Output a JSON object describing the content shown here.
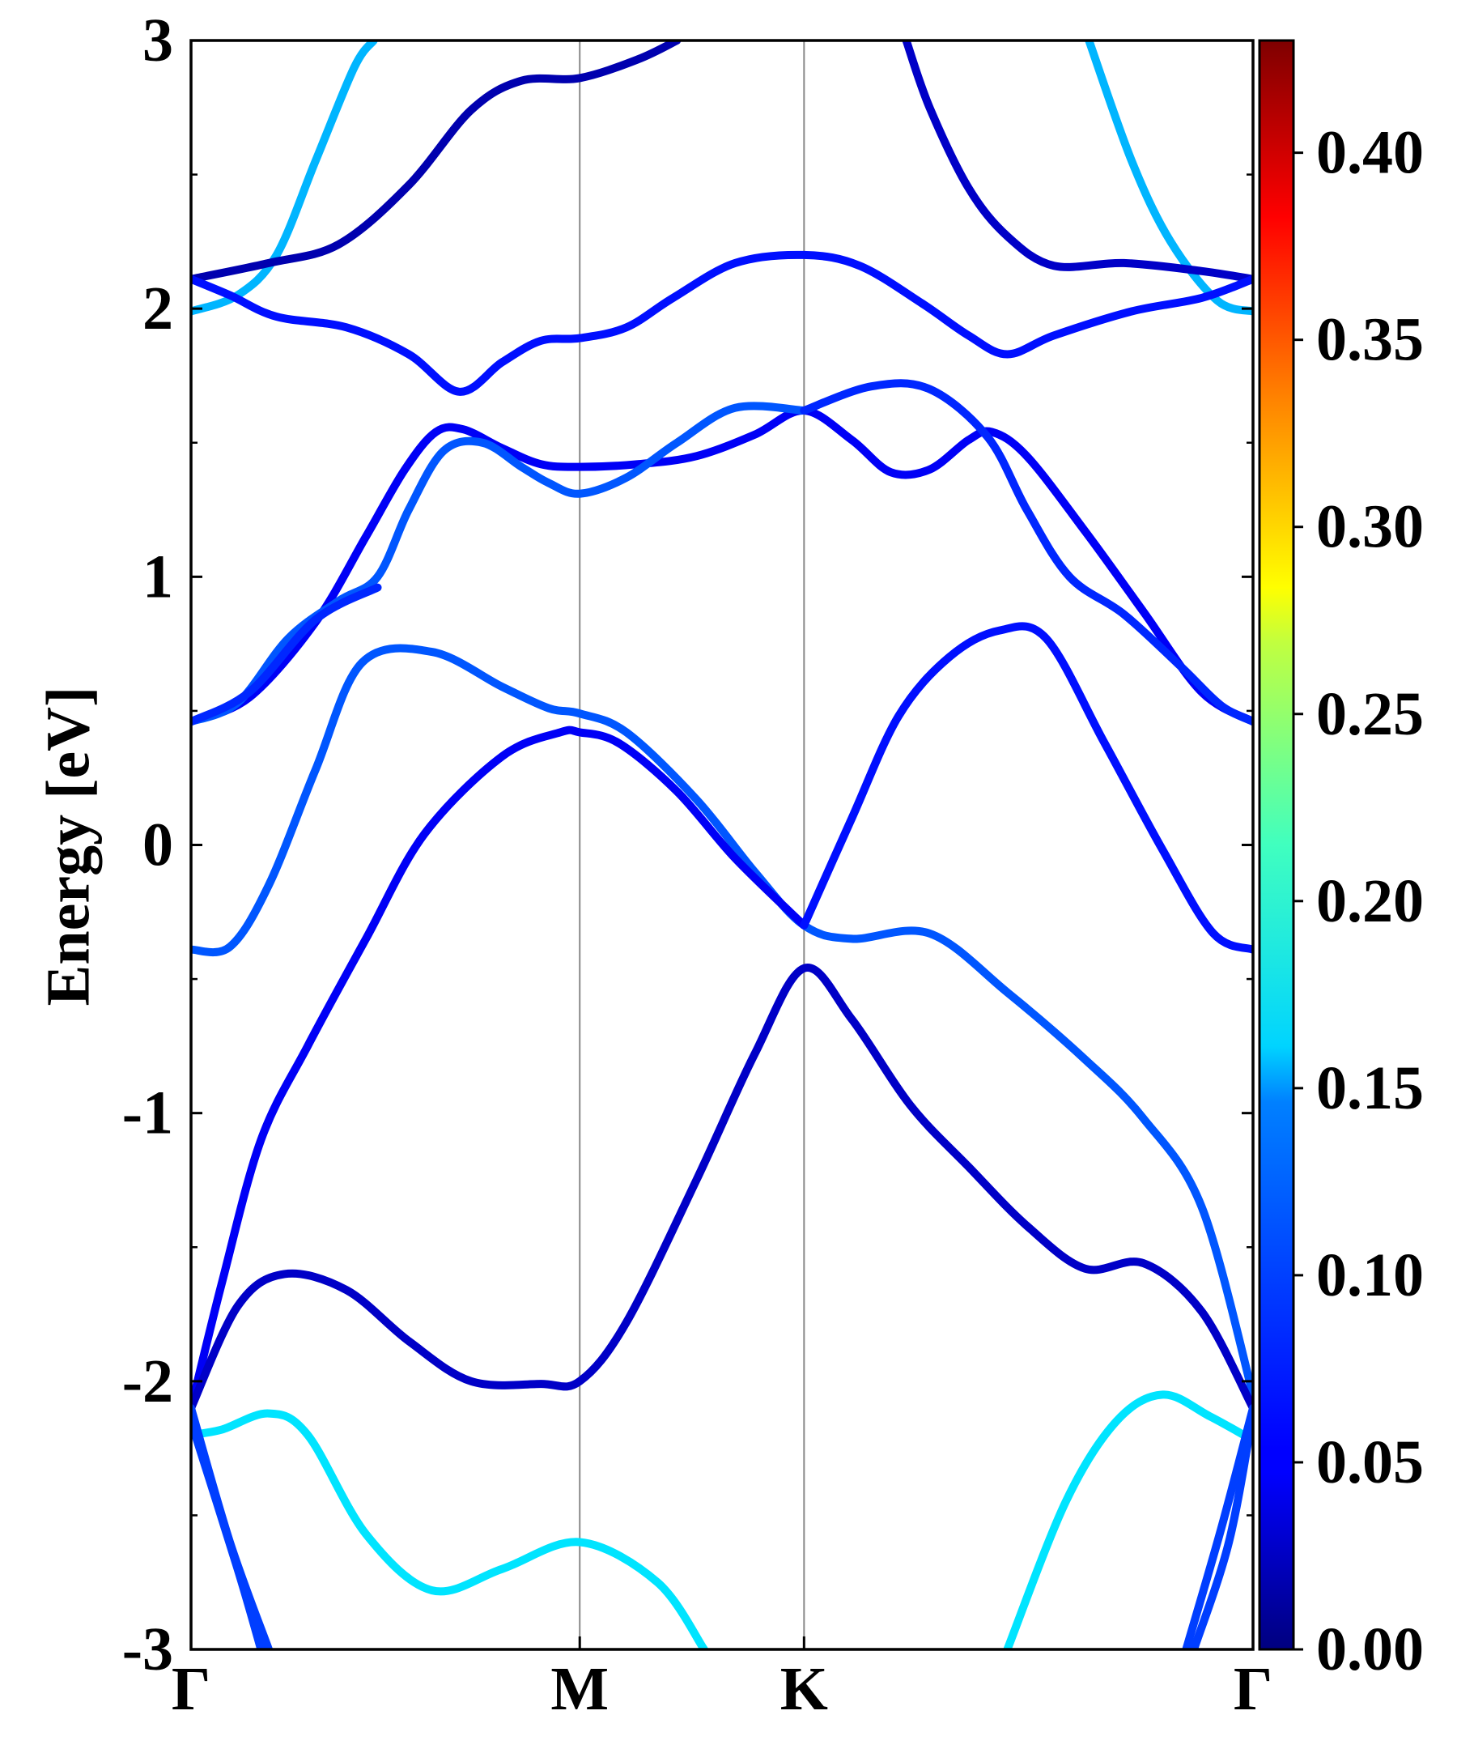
{
  "chart_data": {
    "type": "line",
    "title": "",
    "xlabel": "",
    "ylabel": "Energy [eV]",
    "ylim": [
      -3,
      3
    ],
    "yticks": [
      -3,
      -2,
      -1,
      0,
      1,
      2,
      3
    ],
    "ytick_labels": [
      "-3",
      "-2",
      "-1",
      "0",
      "1",
      "2",
      "3"
    ],
    "kpath": [
      {
        "label": "Γ",
        "x": 0.0
      },
      {
        "label": "M",
        "x": 1.0
      },
      {
        "label": "K",
        "x": 1.577
      },
      {
        "label": "Γ",
        "x": 2.732
      }
    ],
    "grid": false,
    "colormap": "jet",
    "colorbar": {
      "min": 0.0,
      "max": 0.43,
      "ticks": [
        0.0,
        0.05,
        0.1,
        0.15,
        0.2,
        0.25,
        0.3,
        0.35,
        0.4
      ],
      "tick_labels": [
        "0.00",
        "0.05",
        "0.10",
        "0.15",
        "0.20",
        "0.25",
        "0.30",
        "0.35",
        "0.40"
      ]
    },
    "bands": [
      {
        "weight": 0.13,
        "points": [
          [
            0.0,
            1.99
          ],
          [
            0.12,
            2.05
          ],
          [
            0.22,
            2.2
          ],
          [
            0.32,
            2.55
          ],
          [
            0.42,
            2.9
          ],
          [
            0.47,
            3.0
          ]
        ]
      },
      {
        "weight": 0.13,
        "points": [
          [
            2.31,
            3.0
          ],
          [
            2.42,
            2.55
          ],
          [
            2.52,
            2.25
          ],
          [
            2.64,
            2.03
          ],
          [
            2.732,
            1.99
          ]
        ]
      },
      {
        "weight": 0.02,
        "points": [
          [
            0.0,
            2.11
          ],
          [
            0.2,
            2.17
          ],
          [
            0.38,
            2.24
          ],
          [
            0.56,
            2.46
          ],
          [
            0.72,
            2.74
          ],
          [
            0.85,
            2.85
          ],
          [
            1.0,
            2.86
          ],
          [
            1.15,
            2.93
          ],
          [
            1.25,
            3.0
          ]
        ]
      },
      {
        "weight": 0.03,
        "points": [
          [
            1.84,
            3.0
          ],
          [
            1.9,
            2.75
          ],
          [
            2.0,
            2.45
          ],
          [
            2.1,
            2.27
          ],
          [
            2.22,
            2.16
          ],
          [
            2.4,
            2.17
          ],
          [
            2.6,
            2.14
          ],
          [
            2.732,
            2.11
          ]
        ]
      },
      {
        "weight": 0.06,
        "points": [
          [
            0.0,
            2.11
          ],
          [
            0.1,
            2.05
          ],
          [
            0.22,
            1.97
          ],
          [
            0.4,
            1.93
          ],
          [
            0.56,
            1.83
          ],
          [
            0.69,
            1.69
          ],
          [
            0.8,
            1.8
          ],
          [
            0.9,
            1.88
          ],
          [
            1.0,
            1.89
          ],
          [
            1.12,
            1.93
          ],
          [
            1.24,
            2.04
          ],
          [
            1.4,
            2.17
          ],
          [
            1.577,
            2.2
          ],
          [
            1.72,
            2.16
          ],
          [
            1.88,
            2.02
          ],
          [
            2.0,
            1.9
          ],
          [
            2.1,
            1.83
          ],
          [
            2.22,
            1.9
          ],
          [
            2.42,
            1.99
          ],
          [
            2.6,
            2.04
          ],
          [
            2.732,
            2.11
          ]
        ]
      },
      {
        "weight": 0.05,
        "points": [
          [
            0.0,
            0.46
          ],
          [
            0.15,
            0.55
          ],
          [
            0.32,
            0.83
          ],
          [
            0.45,
            1.15
          ],
          [
            0.55,
            1.4
          ],
          [
            0.63,
            1.54
          ],
          [
            0.7,
            1.55
          ],
          [
            0.8,
            1.48
          ],
          [
            0.9,
            1.42
          ],
          [
            1.0,
            1.41
          ],
          [
            1.15,
            1.42
          ],
          [
            1.3,
            1.45
          ],
          [
            1.45,
            1.53
          ],
          [
            1.577,
            1.62
          ],
          [
            1.7,
            1.51
          ],
          [
            1.8,
            1.39
          ],
          [
            1.9,
            1.4
          ],
          [
            2.0,
            1.51
          ],
          [
            2.06,
            1.54
          ],
          [
            2.15,
            1.45
          ],
          [
            2.3,
            1.17
          ],
          [
            2.45,
            0.87
          ],
          [
            2.6,
            0.57
          ],
          [
            2.732,
            0.46
          ]
        ]
      },
      {
        "weight": 0.09,
        "points": [
          [
            0.0,
            0.46
          ],
          [
            0.12,
            0.53
          ],
          [
            0.25,
            0.77
          ],
          [
            0.38,
            0.91
          ],
          [
            0.48,
            1.0
          ],
          [
            0.56,
            1.25
          ],
          [
            0.65,
            1.47
          ],
          [
            0.75,
            1.5
          ],
          [
            0.85,
            1.41
          ],
          [
            0.92,
            1.35
          ],
          [
            1.0,
            1.31
          ],
          [
            1.12,
            1.37
          ],
          [
            1.25,
            1.5
          ],
          [
            1.4,
            1.63
          ],
          [
            1.577,
            1.62
          ]
        ]
      },
      {
        "weight": 0.07,
        "points": [
          [
            0.0,
            0.46
          ],
          [
            0.15,
            0.57
          ],
          [
            0.32,
            0.84
          ],
          [
            0.48,
            0.96
          ]
        ]
      },
      {
        "weight": 0.07,
        "points": [
          [
            1.577,
            1.62
          ],
          [
            1.75,
            1.71
          ],
          [
            1.9,
            1.7
          ],
          [
            2.05,
            1.52
          ],
          [
            2.15,
            1.25
          ],
          [
            2.26,
            1.0
          ],
          [
            2.4,
            0.86
          ],
          [
            2.55,
            0.66
          ],
          [
            2.65,
            0.52
          ],
          [
            2.732,
            0.46
          ]
        ]
      },
      {
        "weight": 0.09,
        "points": [
          [
            0.0,
            -0.39
          ],
          [
            0.1,
            -0.38
          ],
          [
            0.2,
            -0.15
          ],
          [
            0.32,
            0.28
          ],
          [
            0.44,
            0.68
          ],
          [
            0.62,
            0.72
          ],
          [
            0.8,
            0.59
          ],
          [
            0.92,
            0.51
          ],
          [
            1.0,
            0.49
          ],
          [
            1.12,
            0.42
          ],
          [
            1.3,
            0.17
          ],
          [
            1.45,
            -0.1
          ],
          [
            1.577,
            -0.3
          ],
          [
            1.7,
            -0.35
          ],
          [
            1.9,
            -0.33
          ],
          [
            2.1,
            -0.55
          ],
          [
            2.3,
            -0.8
          ],
          [
            2.45,
            -1.02
          ],
          [
            2.6,
            -1.35
          ],
          [
            2.732,
            -2.05
          ]
        ]
      },
      {
        "weight": 0.05,
        "points": [
          [
            0.0,
            -2.1
          ],
          [
            0.08,
            -1.63
          ],
          [
            0.18,
            -1.1
          ],
          [
            0.3,
            -0.75
          ],
          [
            0.45,
            -0.35
          ],
          [
            0.6,
            0.04
          ],
          [
            0.8,
            0.33
          ],
          [
            0.95,
            0.42
          ],
          [
            1.0,
            0.42
          ],
          [
            1.1,
            0.38
          ],
          [
            1.25,
            0.2
          ],
          [
            1.4,
            -0.05
          ],
          [
            1.577,
            -0.3
          ]
        ]
      },
      {
        "weight": 0.06,
        "points": [
          [
            1.577,
            -0.3
          ],
          [
            1.7,
            0.1
          ],
          [
            1.82,
            0.48
          ],
          [
            1.95,
            0.7
          ],
          [
            2.08,
            0.8
          ],
          [
            2.2,
            0.77
          ],
          [
            2.35,
            0.38
          ],
          [
            2.5,
            -0.02
          ],
          [
            2.63,
            -0.33
          ],
          [
            2.732,
            -0.39
          ]
        ]
      },
      {
        "weight": 0.03,
        "points": [
          [
            0.0,
            -2.1
          ],
          [
            0.12,
            -1.72
          ],
          [
            0.24,
            -1.6
          ],
          [
            0.4,
            -1.66
          ],
          [
            0.56,
            -1.85
          ],
          [
            0.72,
            -2.0
          ],
          [
            0.9,
            -2.01
          ],
          [
            1.0,
            -2.0
          ],
          [
            1.12,
            -1.78
          ],
          [
            1.3,
            -1.25
          ],
          [
            1.45,
            -0.78
          ],
          [
            1.577,
            -0.46
          ],
          [
            1.7,
            -0.65
          ],
          [
            1.85,
            -0.97
          ],
          [
            2.0,
            -1.2
          ],
          [
            2.15,
            -1.42
          ],
          [
            2.3,
            -1.58
          ],
          [
            2.45,
            -1.56
          ],
          [
            2.6,
            -1.74
          ],
          [
            2.732,
            -2.1
          ]
        ]
      },
      {
        "weight": 0.15,
        "points": [
          [
            0.0,
            -2.2
          ],
          [
            0.08,
            -2.18
          ],
          [
            0.2,
            -2.12
          ],
          [
            0.3,
            -2.2
          ],
          [
            0.45,
            -2.57
          ],
          [
            0.62,
            -2.78
          ],
          [
            0.8,
            -2.7
          ],
          [
            1.0,
            -2.6
          ],
          [
            1.2,
            -2.75
          ],
          [
            1.32,
            -3.0
          ]
        ]
      },
      {
        "weight": 0.15,
        "points": [
          [
            2.1,
            -3.0
          ],
          [
            2.25,
            -2.45
          ],
          [
            2.38,
            -2.15
          ],
          [
            2.5,
            -2.05
          ],
          [
            2.62,
            -2.13
          ],
          [
            2.732,
            -2.22
          ]
        ]
      },
      {
        "weight": 0.08,
        "points": [
          [
            0.0,
            -2.1
          ],
          [
            0.1,
            -2.6
          ],
          [
            0.2,
            -3.0
          ]
        ]
      },
      {
        "weight": 0.08,
        "points": [
          [
            0.0,
            -2.15
          ],
          [
            0.12,
            -2.7
          ],
          [
            0.18,
            -3.0
          ]
        ]
      },
      {
        "weight": 0.08,
        "points": [
          [
            2.56,
            -3.0
          ],
          [
            2.65,
            -2.55
          ],
          [
            2.732,
            -2.1
          ]
        ]
      },
      {
        "weight": 0.08,
        "points": [
          [
            2.58,
            -3.0
          ],
          [
            2.67,
            -2.6
          ],
          [
            2.732,
            -2.12
          ]
        ]
      }
    ]
  }
}
